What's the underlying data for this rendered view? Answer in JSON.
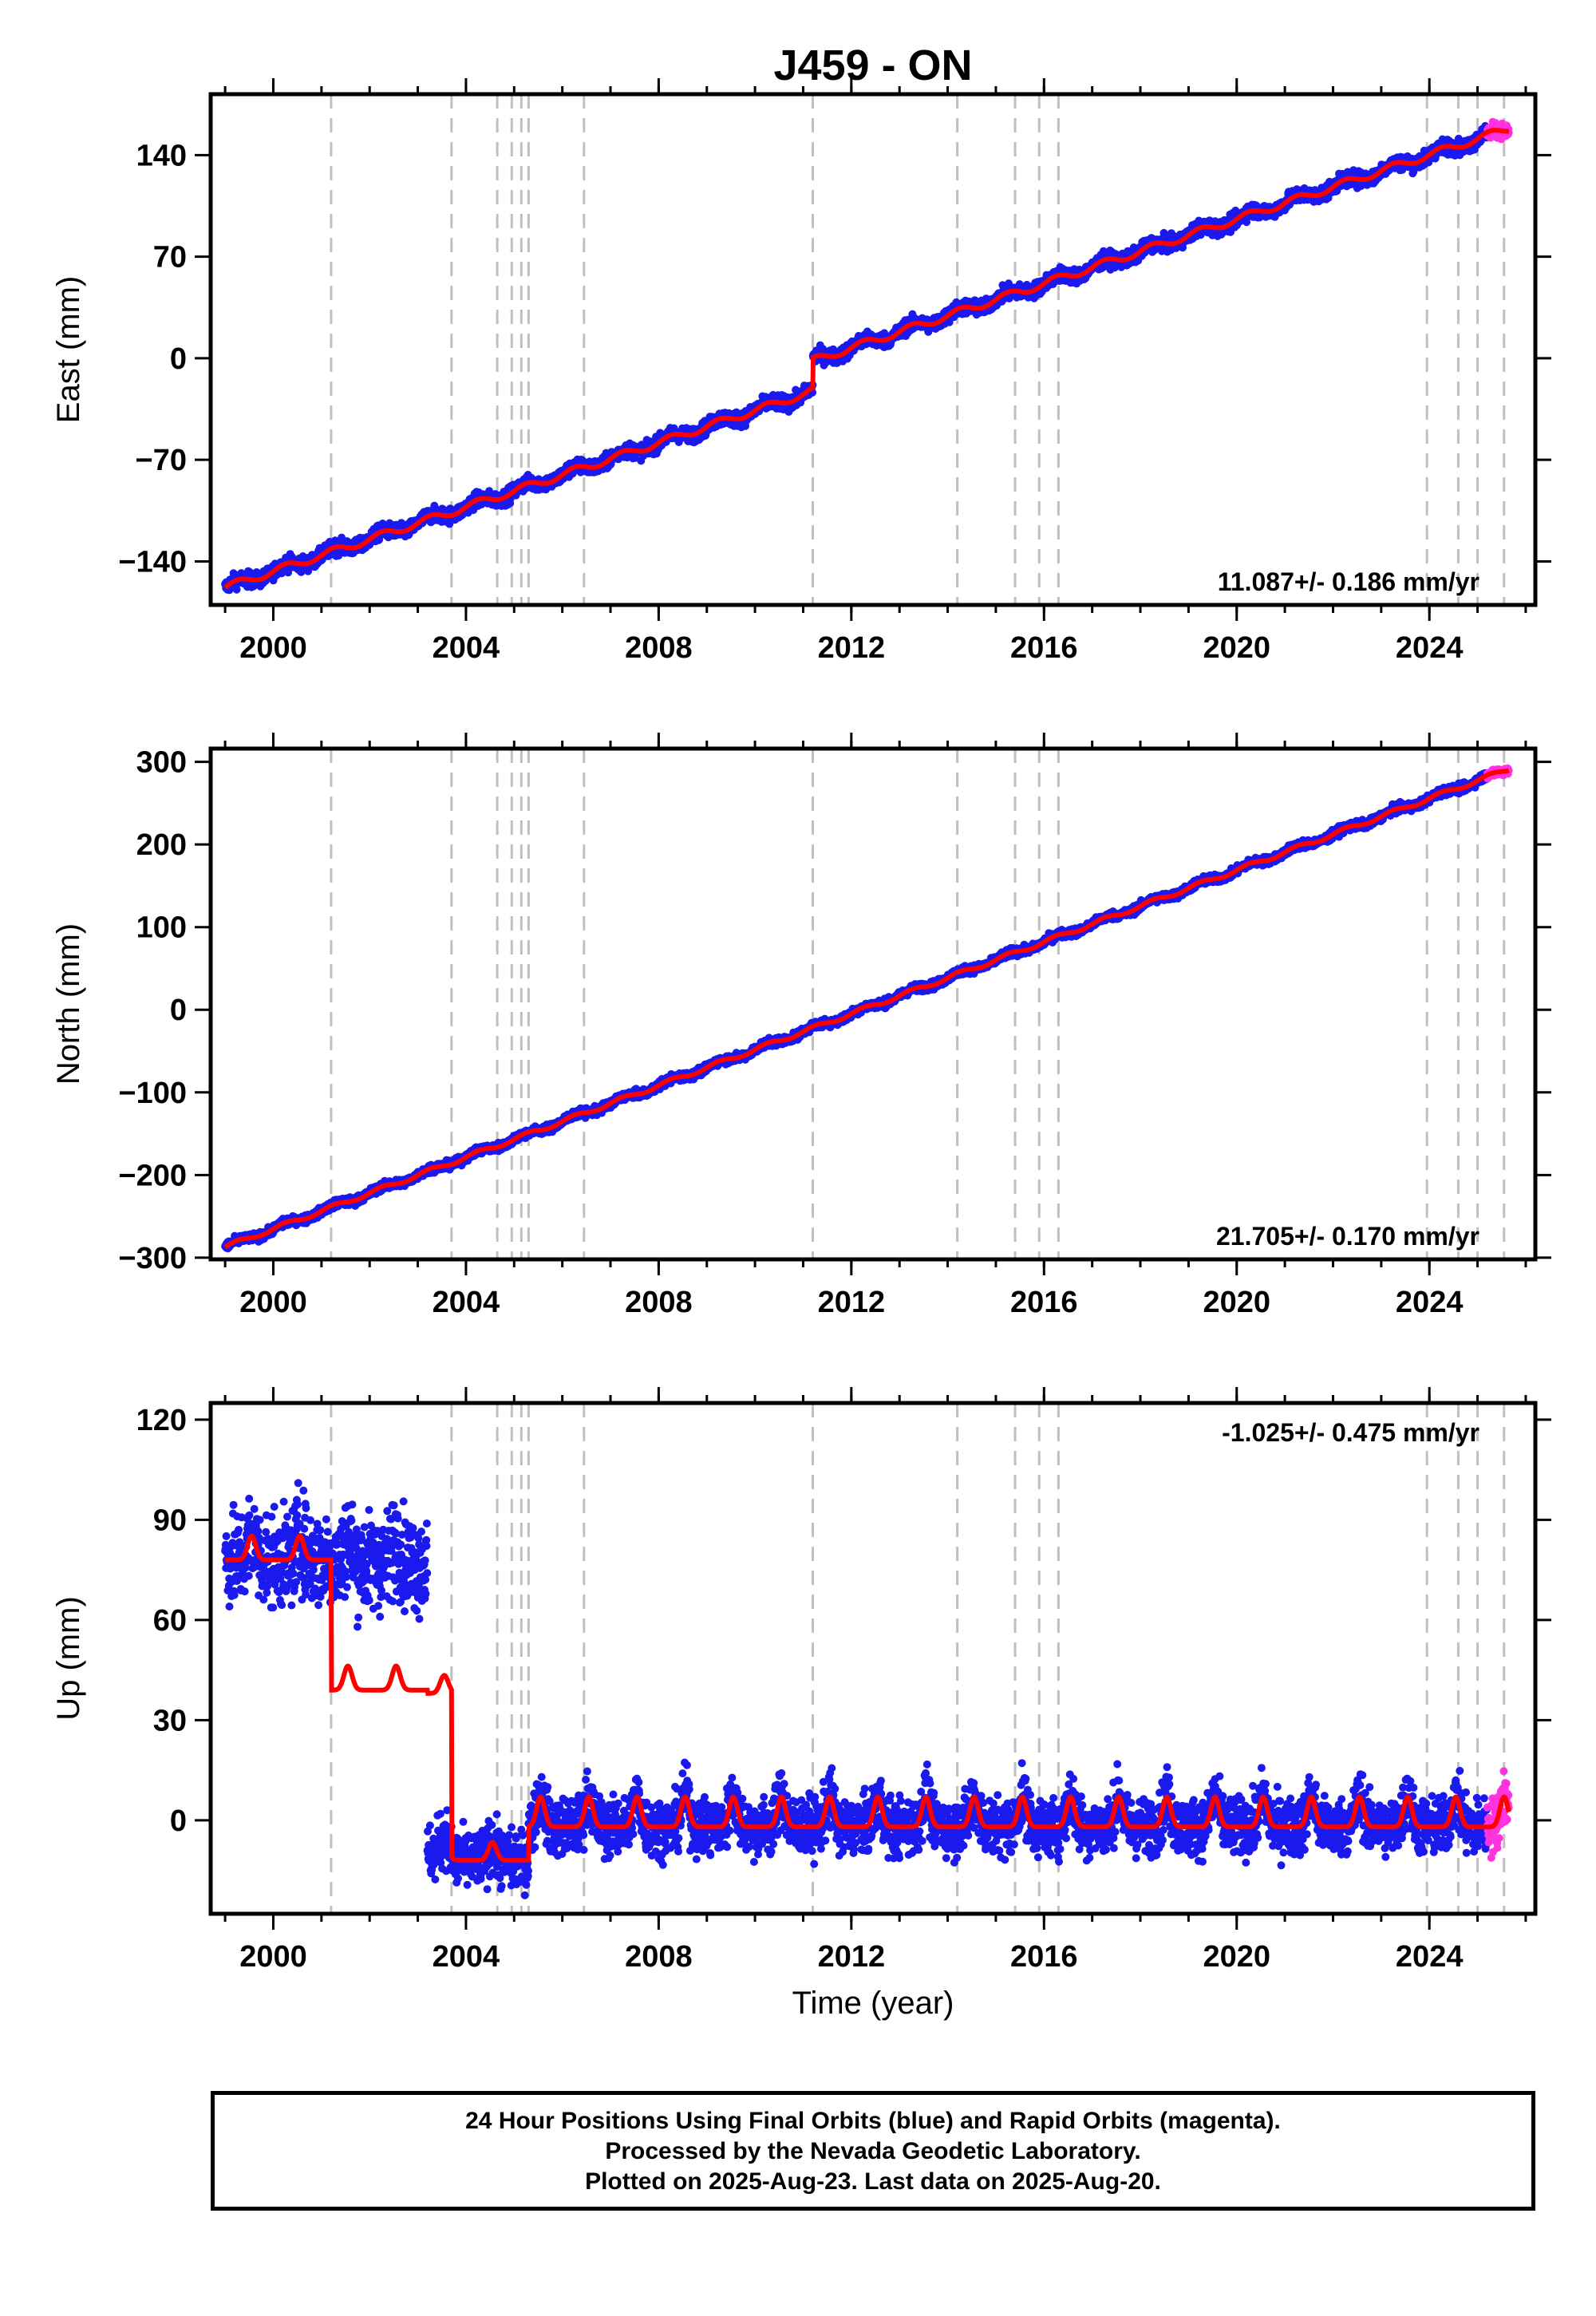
{
  "title": "J459 - ON",
  "colors": {
    "final_orbits": "#1a1aee",
    "rapid_orbits": "#ff33dd",
    "model": "#ff0000",
    "event_lines": "#c0c0c0"
  },
  "footer": {
    "line1": "24 Hour Positions Using Final Orbits (blue) and Rapid Orbits (magenta).",
    "line2": "Processed by the Nevada Geodetic Laboratory.",
    "line3": "Plotted on 2025-Aug-23. Last data on 2025-Aug-20."
  },
  "chart_data": [
    {
      "type": "scatter",
      "panel": "east",
      "ylabel": "East (mm)",
      "xlabel": "",
      "xlim": [
        1998.7,
        2026.2
      ],
      "ylim": [
        -170,
        182
      ],
      "xticks": [
        2000,
        2004,
        2008,
        2012,
        2016,
        2020,
        2024
      ],
      "yticks": [
        -140,
        -70,
        0,
        70,
        140
      ],
      "ytick_labels": [
        "−140",
        "−70",
        "0",
        "70",
        "140"
      ],
      "rate_label": "11.087+/- 0.186 mm/yr",
      "rate_position": "bottom-right",
      "event_lines": [
        2001.2,
        2003.7,
        2004.65,
        2004.95,
        2005.15,
        2005.3,
        2006.45,
        2011.2,
        2014.2,
        2015.4,
        2015.9,
        2016.3,
        2023.95,
        2024.6,
        2025.0,
        2025.55
      ],
      "trend": {
        "x0": 1999.0,
        "y0": -158,
        "rate": 11.087,
        "offsets": [
          {
            "x": 2011.2,
            "dy": 21
          }
        ],
        "annual_amp": 2.5,
        "noise": 3.5
      },
      "rapid_range": [
        2025.2,
        2025.65
      ]
    },
    {
      "type": "scatter",
      "panel": "north",
      "ylabel": "North (mm)",
      "xlabel": "",
      "xlim": [
        1998.7,
        2026.2
      ],
      "ylim": [
        -302,
        316
      ],
      "xticks": [
        2000,
        2004,
        2008,
        2012,
        2016,
        2020,
        2024
      ],
      "yticks": [
        -300,
        -200,
        -100,
        0,
        100,
        200,
        300
      ],
      "ytick_labels": [
        "−300",
        "−200",
        "−100",
        "0",
        "100",
        "200",
        "300"
      ],
      "rate_label": "21.705+/- 0.170 mm/yr",
      "rate_position": "bottom-right",
      "event_lines": [
        2001.2,
        2003.7,
        2004.65,
        2004.95,
        2005.15,
        2005.3,
        2006.45,
        2011.2,
        2014.2,
        2015.4,
        2015.9,
        2016.3,
        2023.95,
        2024.6,
        2025.0,
        2025.55
      ],
      "trend": {
        "x0": 1999.0,
        "y0": -287,
        "rate": 21.705,
        "offsets": [],
        "annual_amp": 2.5,
        "noise": 3.5
      },
      "rapid_range": [
        2025.2,
        2025.65
      ]
    },
    {
      "type": "scatter",
      "panel": "up",
      "ylabel": "Up (mm)",
      "xlabel": "Time (year)",
      "xlim": [
        1998.7,
        2026.2
      ],
      "ylim": [
        -28,
        125
      ],
      "xticks": [
        2000,
        2004,
        2008,
        2012,
        2016,
        2020,
        2024
      ],
      "yticks": [
        0,
        30,
        60,
        90,
        120
      ],
      "ytick_labels": [
        "0",
        "30",
        "60",
        "90",
        "120"
      ],
      "rate_label": "-1.025+/- 0.475 mm/yr",
      "rate_position": "top-right",
      "event_lines": [
        2001.2,
        2003.7,
        2004.65,
        2004.95,
        2005.15,
        2005.3,
        2006.45,
        2011.2,
        2014.2,
        2015.4,
        2015.9,
        2016.3,
        2023.95,
        2024.6,
        2025.0,
        2025.55
      ],
      "segments": [
        {
          "from": 1999.0,
          "to": 2001.2,
          "level": 80,
          "annual_amp": 4,
          "noise": 10
        },
        {
          "from": 2001.2,
          "to": 2003.2,
          "level": 41,
          "annual_amp": 4,
          "noise": 10,
          "data_level": 79
        },
        {
          "from": 2003.2,
          "to": 2003.7,
          "level": 40,
          "annual_amp": 3,
          "noise": 6,
          "data_level": -8
        },
        {
          "from": 2003.7,
          "to": 2005.3,
          "level": -10,
          "annual_amp": 3,
          "noise": 6
        },
        {
          "from": 2005.3,
          "to": 2025.65,
          "level": 0,
          "annual_amp": 5,
          "noise": 6
        }
      ],
      "rapid_range": [
        2025.2,
        2025.65
      ]
    }
  ]
}
